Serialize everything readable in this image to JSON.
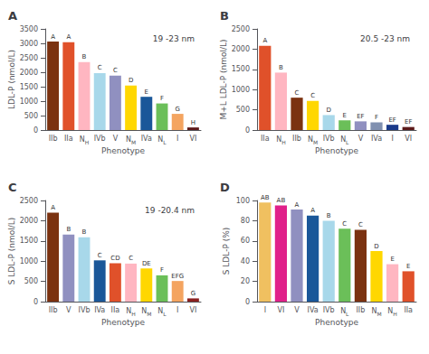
{
  "chart_data": [
    {
      "type": "bar",
      "panel_label": "A",
      "title": "19 -23 nm",
      "ylabel": "LDL-P (nmol/L)",
      "xlabel": "Phenotype",
      "categories": [
        "IIb",
        "IIa",
        "NH",
        "IVb",
        "V",
        "NM",
        "IVa",
        "NL",
        "I",
        "VI"
      ],
      "values": [
        3060,
        3040,
        2350,
        1970,
        1880,
        1540,
        1150,
        920,
        560,
        90
      ],
      "colors": [
        "#7B3210",
        "#E0512A",
        "#FFB6C1",
        "#A8D8EA",
        "#9090C0",
        "#FFD700",
        "#1A5799",
        "#6BBF59",
        "#F4A460",
        "#5C1A1A"
      ],
      "annotations": [
        "A",
        "A",
        "B",
        "C",
        "C",
        "D",
        "E",
        "F",
        "G",
        "H"
      ],
      "ylim": [
        0,
        3500
      ],
      "yticks": [
        0,
        500,
        1000,
        1500,
        2000,
        2500,
        3000,
        3500
      ],
      "grid": false
    },
    {
      "type": "bar",
      "panel_label": "B",
      "title": "20.5 -23 nm",
      "ylabel": "M+L LDL-P (nmol/L)",
      "xlabel": "Phenotype",
      "categories": [
        "IIa",
        "NH",
        "IIb",
        "NM",
        "IVb",
        "NL",
        "V",
        "IVa",
        "I",
        "VI"
      ],
      "values": [
        2080,
        1420,
        800,
        720,
        370,
        240,
        215,
        190,
        130,
        75
      ],
      "colors": [
        "#E0512A",
        "#FFB6C1",
        "#7B3210",
        "#FFD700",
        "#A8D8EA",
        "#6BBF59",
        "#9090C0",
        "#8090B0",
        "#1A3A8A",
        "#5C1A1A"
      ],
      "annotations": [
        "A",
        "B",
        "C",
        "C",
        "D",
        "E",
        "EF",
        "F",
        "EF",
        "EF"
      ],
      "ylim": [
        0,
        2500
      ],
      "yticks": [
        0,
        500,
        1000,
        1500,
        2000,
        2500
      ],
      "grid": false
    },
    {
      "type": "bar",
      "panel_label": "C",
      "title": "19 -20.4 nm",
      "ylabel": "S LDL-P (nmol/L)",
      "xlabel": "Phenotype",
      "categories": [
        "IIb",
        "V",
        "IVb",
        "IVa",
        "IIa",
        "NH",
        "NM",
        "NL",
        "I",
        "VI"
      ],
      "values": [
        2200,
        1660,
        1590,
        1020,
        950,
        940,
        820,
        650,
        510,
        80
      ],
      "colors": [
        "#7B3210",
        "#9090C0",
        "#A8D8EA",
        "#1A5799",
        "#E0512A",
        "#FFB6C1",
        "#FFD700",
        "#6BBF59",
        "#F4A460",
        "#8B2020"
      ],
      "annotations": [
        "A",
        "B",
        "B",
        "C",
        "CD",
        "C",
        "DE",
        "F",
        "EFG",
        "G"
      ],
      "ylim": [
        0,
        2500
      ],
      "yticks": [
        0,
        500,
        1000,
        1500,
        2000,
        2500
      ],
      "grid": false
    },
    {
      "type": "bar",
      "panel_label": "D",
      "ylabel": "S LDL-P (%)",
      "xlabel": "Phenotype",
      "categories": [
        "I",
        "VI",
        "V",
        "IVa",
        "IVb",
        "NL",
        "IIb",
        "NM",
        "NH",
        "IIa"
      ],
      "values": [
        98,
        95,
        91,
        85,
        80,
        72,
        71,
        50,
        37,
        30
      ],
      "colors": [
        "#F0C060",
        "#E0208A",
        "#9090C0",
        "#1A5799",
        "#A8D8EA",
        "#6BBF59",
        "#7B3210",
        "#FFD700",
        "#FFB6C1",
        "#E0512A"
      ],
      "annotations": [
        "AB",
        "AB",
        "A",
        "A",
        "B",
        "C",
        "C",
        "D",
        "E",
        "E"
      ],
      "ylim": [
        0,
        100
      ],
      "yticks": [
        0,
        20,
        40,
        60,
        80,
        100
      ],
      "grid": false
    }
  ]
}
